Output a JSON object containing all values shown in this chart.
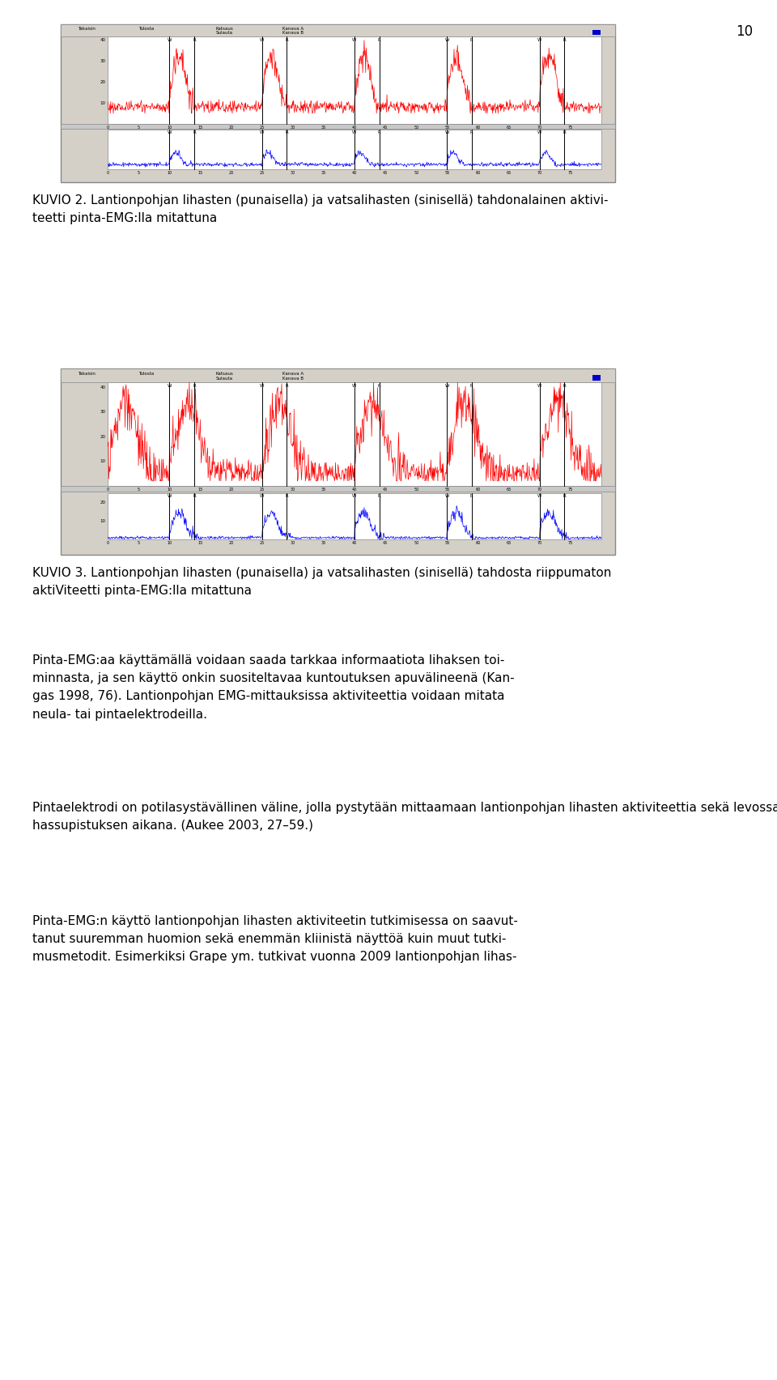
{
  "page_number": "10",
  "background_color": "#ffffff",
  "page_width": 9.6,
  "page_height": 17.04,
  "caption2": "KUVIO 2. Lantionpohjan lihasten (punaisella) ja vatsalihasten (sinisellä) tahdonalainen aktivi-\nteetti pinta-EMG:lla mitattuna",
  "caption3": "KUVIO 3. Lantionpohjan lihasten (punaisella) ja vatsalihasten (sinisellä) tahdosta riippumaton\naktiViteetti pinta-EMG:lla mitattuna",
  "para1": "Pinta-EMG:aa käyttämällä voidaan saada tarkkaa informaatiota lihaksen toi-\nminnasta, ja sen käyttö onkin suositeltavaa kuntoutuksen apuvälineenä (Kan-\ngas 1998, 76). Lantionpohjan EMG-mittauksissa aktiviteettia voidaan mitata\nneula- tai pintaelektrodeilla.",
  "para2": "Pintaelektrodi on potilasystävällinen väline, jolla pystytään mittaamaan lantionpohjan lihasten aktiviteettia sekä levossa että li-\nhassupistuksen aikana. (Aukee 2003, 27–59.)",
  "para3": "Pinta-EMG:n käyttö lantionpohjan lihasten aktiviteetin tutkimisessa on saavut-\ntanut suuremman huomion sekä enemmän kliinistä näyttöä kuin muut tutki-\nmusmetodit. Esimerkiksi Grape ym. tutkivat vuonna 2009 lantionpohjan lihas-",
  "font_size_caption": 11,
  "font_size_body": 11,
  "font_size_page": 11
}
